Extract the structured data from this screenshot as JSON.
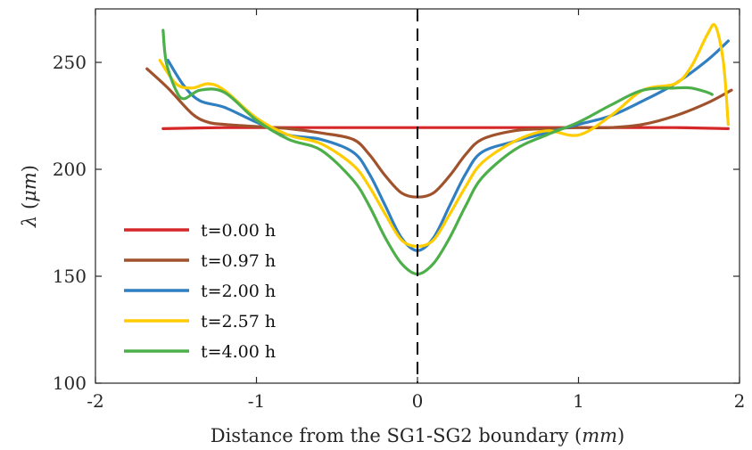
{
  "chart_data": {
    "type": "line",
    "xlabel": "Distance from the SG1-SG2 boundary (mm)",
    "ylabel": "λ (μm)",
    "xlim": [
      -2,
      2
    ],
    "ylim": [
      100,
      275
    ],
    "xticks": [
      -2,
      -1,
      0,
      1,
      2
    ],
    "yticks": [
      100,
      150,
      200,
      250
    ],
    "grid": false,
    "legend_position": "bottom-left",
    "vline": {
      "x": 0,
      "style": "dashed",
      "color": "#000000"
    },
    "series": [
      {
        "name": "t=0.00 h",
        "color": "#d62728",
        "x": [
          -1.58,
          -1.2,
          -0.8,
          -0.4,
          0,
          0.4,
          0.8,
          1.2,
          1.6,
          1.93
        ],
        "y": [
          219,
          219.5,
          219.5,
          219.5,
          219.5,
          219.5,
          219.5,
          219.5,
          219.5,
          219
        ]
      },
      {
        "name": "t=0.97 h",
        "color": "#a0522d",
        "x": [
          -1.68,
          -1.55,
          -1.4,
          -1.3,
          -1.2,
          -1.0,
          -0.8,
          -0.6,
          -0.4,
          -0.3,
          -0.2,
          -0.1,
          0,
          0.1,
          0.2,
          0.3,
          0.4,
          0.6,
          0.8,
          1.0,
          1.2,
          1.4,
          1.6,
          1.8,
          1.95
        ],
        "y": [
          247,
          238,
          226,
          222,
          221,
          220,
          219,
          217,
          214,
          207,
          197,
          189,
          187,
          189,
          197,
          207,
          214,
          218,
          219,
          219.5,
          219.5,
          221,
          225,
          231,
          237
        ]
      },
      {
        "name": "t=2.00 h",
        "color": "#2f7fc1",
        "x": [
          -1.55,
          -1.45,
          -1.35,
          -1.2,
          -1.0,
          -0.8,
          -0.6,
          -0.4,
          -0.3,
          -0.2,
          -0.1,
          0,
          0.1,
          0.2,
          0.3,
          0.4,
          0.6,
          0.8,
          1.0,
          1.2,
          1.4,
          1.6,
          1.8,
          1.93
        ],
        "y": [
          251,
          239,
          232,
          229,
          222,
          216,
          214,
          208,
          198,
          183,
          168,
          162,
          168,
          183,
          198,
          208,
          213,
          217,
          221,
          225,
          232,
          240,
          251,
          260
        ]
      },
      {
        "name": "t=2.57 h",
        "color": "#ffcc00",
        "x": [
          -1.6,
          -1.5,
          -1.4,
          -1.3,
          -1.2,
          -1.0,
          -0.8,
          -0.6,
          -0.4,
          -0.3,
          -0.2,
          -0.1,
          0,
          0.1,
          0.2,
          0.3,
          0.4,
          0.6,
          0.8,
          1.0,
          1.2,
          1.4,
          1.6,
          1.7,
          1.8,
          1.85,
          1.9,
          1.93
        ],
        "y": [
          251,
          240,
          238,
          240,
          237,
          224,
          216,
          212,
          202,
          192,
          179,
          167,
          164,
          167,
          179,
          192,
          203,
          213,
          218,
          216,
          225,
          237,
          240,
          248,
          263,
          267,
          250,
          221
        ]
      },
      {
        "name": "t=4.00 h",
        "color": "#4daf4a",
        "x": [
          -1.58,
          -1.56,
          -1.5,
          -1.45,
          -1.35,
          -1.2,
          -1.0,
          -0.8,
          -0.6,
          -0.4,
          -0.3,
          -0.2,
          -0.1,
          0,
          0.1,
          0.2,
          0.3,
          0.4,
          0.6,
          0.8,
          1.0,
          1.2,
          1.4,
          1.6,
          1.7,
          1.8,
          1.83
        ],
        "y": [
          265,
          250,
          237,
          233,
          237,
          236,
          223,
          214,
          209,
          195,
          183,
          168,
          156,
          151,
          156,
          168,
          183,
          196,
          209,
          216,
          222,
          230,
          237,
          238,
          238,
          236,
          235
        ]
      }
    ]
  }
}
